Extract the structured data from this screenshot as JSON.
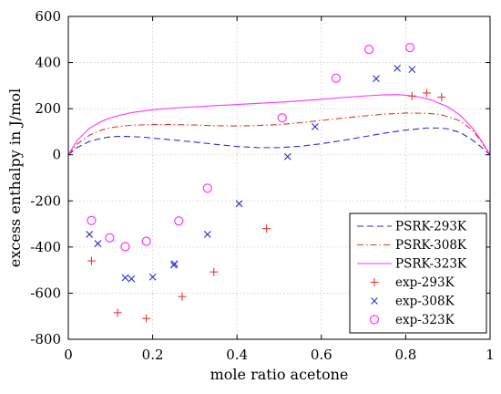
{
  "chart_data": {
    "type": "line",
    "title": "",
    "xlabel": "mole ratio acetone",
    "ylabel": "excess enthalpy in J/mol",
    "xlim": [
      0,
      1
    ],
    "ylim": [
      -800,
      600
    ],
    "xticks": [
      0,
      0.2,
      0.4,
      0.6,
      0.8,
      1
    ],
    "yticks": [
      -800,
      -600,
      -400,
      -200,
      0,
      200,
      400,
      600
    ],
    "xtick_labels": [
      "0",
      "0.2",
      "0.4",
      "0.6",
      "0.8",
      "1"
    ],
    "ytick_labels": [
      "-800",
      "-600",
      "-400",
      "-200",
      "0",
      "200",
      "400",
      "600"
    ],
    "grid": true,
    "legend_position": "bottom-right",
    "series": [
      {
        "name": "PSRK-293K",
        "kind": "line",
        "style": "dashed",
        "color": "#2b2bd9",
        "x": [
          0,
          0.02,
          0.05,
          0.08,
          0.1,
          0.12,
          0.15,
          0.18,
          0.2,
          0.25,
          0.3,
          0.35,
          0.4,
          0.45,
          0.5,
          0.55,
          0.6,
          0.65,
          0.7,
          0.75,
          0.8,
          0.85,
          0.88,
          0.9,
          0.93,
          0.96,
          0.98,
          1
        ],
        "y": [
          0,
          30,
          58,
          72,
          78,
          80,
          79,
          76,
          72,
          64,
          55,
          45,
          36,
          31,
          31,
          37,
          48,
          62,
          78,
          94,
          107,
          116,
          116,
          112,
          96,
          62,
          32,
          0
        ]
      },
      {
        "name": "PSRK-308K",
        "kind": "line",
        "style": "dashdot",
        "color": "#d93a2b",
        "x": [
          0,
          0.02,
          0.05,
          0.08,
          0.1,
          0.12,
          0.15,
          0.2,
          0.25,
          0.3,
          0.35,
          0.4,
          0.45,
          0.5,
          0.55,
          0.6,
          0.65,
          0.7,
          0.75,
          0.8,
          0.85,
          0.88,
          0.9,
          0.93,
          0.96,
          0.98,
          1
        ],
        "y": [
          0,
          45,
          85,
          108,
          117,
          123,
          128,
          131,
          131,
          129,
          126,
          125,
          127,
          131,
          139,
          149,
          159,
          168,
          176,
          181,
          180,
          175,
          166,
          146,
          103,
          55,
          0
        ]
      },
      {
        "name": "PSRK-323K",
        "kind": "line",
        "style": "solid",
        "color": "#ff33ff",
        "x": [
          0,
          0.02,
          0.05,
          0.08,
          0.1,
          0.12,
          0.15,
          0.2,
          0.25,
          0.3,
          0.35,
          0.4,
          0.45,
          0.5,
          0.55,
          0.6,
          0.65,
          0.7,
          0.75,
          0.78,
          0.8,
          0.83,
          0.86,
          0.9,
          0.93,
          0.96,
          0.98,
          1
        ],
        "y": [
          0,
          60,
          115,
          146,
          160,
          171,
          183,
          195,
          203,
          208,
          213,
          218,
          223,
          228,
          234,
          241,
          248,
          255,
          260,
          261,
          258,
          251,
          238,
          208,
          170,
          112,
          60,
          0
        ]
      },
      {
        "name": "exp-293K",
        "kind": "scatter",
        "marker": "plus",
        "color": "#e8382b",
        "x": [
          0.055,
          0.117,
          0.185,
          0.27,
          0.345,
          0.47,
          0.815,
          0.85,
          0.885
        ],
        "y": [
          -460,
          -685,
          -710,
          -615,
          -508,
          -320,
          255,
          268,
          250
        ]
      },
      {
        "name": "exp-308K",
        "kind": "scatter",
        "marker": "x",
        "color": "#2b2bd9",
        "x": [
          0.05,
          0.07,
          0.135,
          0.15,
          0.2,
          0.25,
          0.252,
          0.33,
          0.405,
          0.52,
          0.585,
          0.73,
          0.78,
          0.815
        ],
        "y": [
          -345,
          -385,
          -533,
          -538,
          -530,
          -478,
          -473,
          -345,
          -212,
          -8,
          122,
          330,
          375,
          370
        ]
      },
      {
        "name": "exp-323K",
        "kind": "scatter",
        "marker": "circle",
        "color": "#ff33ff",
        "x": [
          0.055,
          0.098,
          0.135,
          0.185,
          0.262,
          0.33,
          0.507,
          0.635,
          0.713,
          0.81
        ],
        "y": [
          -285,
          -360,
          -398,
          -375,
          -287,
          -145,
          160,
          332,
          457,
          465
        ]
      }
    ]
  }
}
